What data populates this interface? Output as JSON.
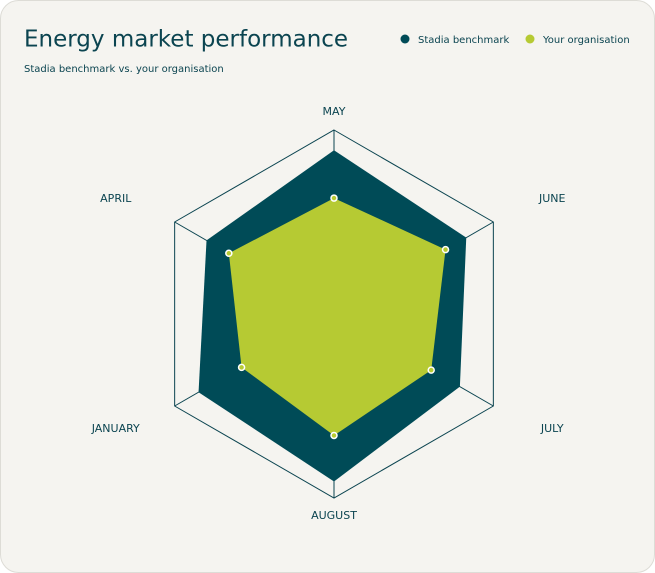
{
  "chart_data": {
    "type": "radar",
    "title": "Energy market performance",
    "subtitle": "Stadia benchmark vs. your organisation",
    "categories": [
      "MAY",
      "JUNE",
      "JULY",
      "AUGUST",
      "JANUARY",
      "APRIL"
    ],
    "series": [
      {
        "name": "Stadia benchmark",
        "color": "#004b57",
        "values": [
          89,
          83,
          79,
          91,
          85,
          80
        ]
      },
      {
        "name": "Your organisation",
        "color": "#b6ca33",
        "values": [
          63,
          70,
          61,
          66,
          58,
          66
        ]
      }
    ],
    "rlim": [
      0,
      100
    ],
    "legend": "top-right"
  }
}
